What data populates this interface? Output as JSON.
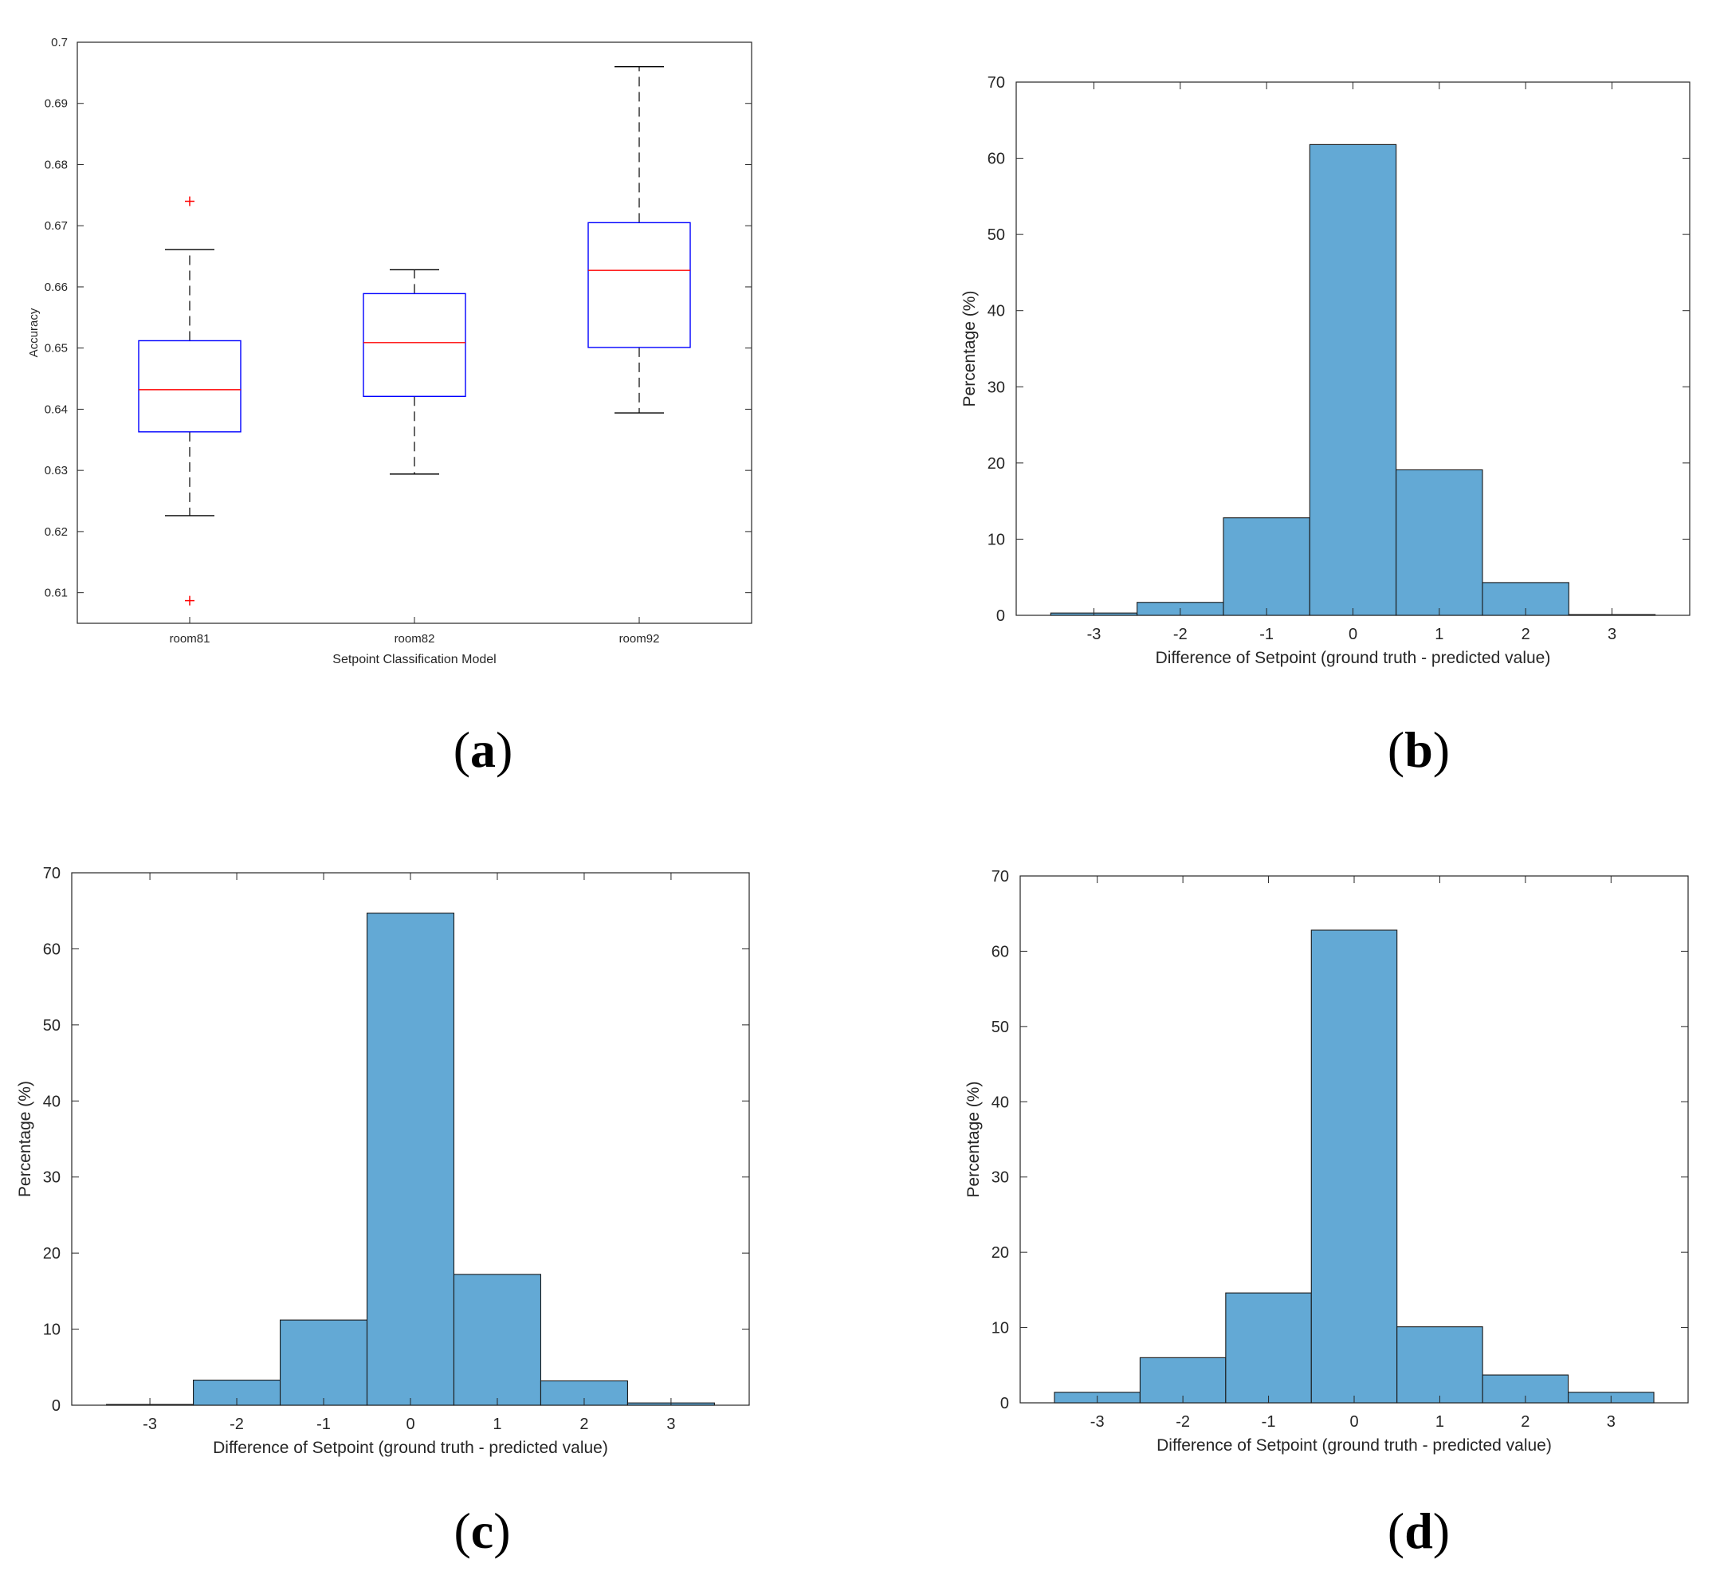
{
  "chart_data": [
    {
      "panel": "(a)",
      "panel_letter": "a",
      "type": "box",
      "xlabel": "Setpoint Classification Model",
      "ylabel": "Accuracy",
      "ylim": [
        0.605,
        0.7
      ],
      "yticks": [
        0.61,
        0.62,
        0.63,
        0.64,
        0.65,
        0.66,
        0.67,
        0.68,
        0.69,
        0.7
      ],
      "categories": [
        "room81",
        "room82",
        "room92"
      ],
      "boxes": [
        {
          "name": "room81",
          "whisker_low": 0.6226,
          "q1": 0.6363,
          "median": 0.6432,
          "q3": 0.6512,
          "whisker_high": 0.6661,
          "outliers": [
            0.674,
            0.6087
          ]
        },
        {
          "name": "room82",
          "whisker_low": 0.6294,
          "q1": 0.6421,
          "median": 0.6509,
          "q3": 0.6589,
          "whisker_high": 0.6628,
          "outliers": []
        },
        {
          "name": "room92",
          "whisker_low": 0.6394,
          "q1": 0.6501,
          "median": 0.6627,
          "q3": 0.6705,
          "whisker_high": 0.696,
          "outliers": []
        }
      ],
      "colors": {
        "box": "#0000ff",
        "median": "#ff0000",
        "whisker": "#000000",
        "outlier": "#ff0000"
      }
    },
    {
      "panel": "(b)",
      "panel_letter": "b",
      "type": "bar",
      "xlabel": "Difference of Setpoint (ground truth - predicted value)",
      "ylabel": "Percentage (%)",
      "ylim": [
        0,
        70
      ],
      "yticks": [
        0,
        10,
        20,
        30,
        40,
        50,
        60,
        70
      ],
      "categories": [
        "-3",
        "-2",
        "-1",
        "0",
        "1",
        "2",
        "3"
      ],
      "values": [
        0.3,
        1.7,
        12.8,
        61.8,
        19.1,
        4.3,
        0.1
      ],
      "colors": {
        "bar": "#63a9d5"
      }
    },
    {
      "panel": "(c)",
      "panel_letter": "c",
      "type": "bar",
      "xlabel": "Difference of Setpoint (ground truth - predicted value)",
      "ylabel": "Percentage (%)",
      "ylim": [
        0,
        70
      ],
      "yticks": [
        0,
        10,
        20,
        30,
        40,
        50,
        60,
        70
      ],
      "categories": [
        "-3",
        "-2",
        "-1",
        "0",
        "1",
        "2",
        "3"
      ],
      "values": [
        0.1,
        3.3,
        11.2,
        64.7,
        17.2,
        3.2,
        0.3
      ],
      "colors": {
        "bar": "#63a9d5"
      }
    },
    {
      "panel": "(d)",
      "panel_letter": "d",
      "type": "bar",
      "xlabel": "Difference of Setpoint (ground truth - predicted value)",
      "ylabel": "Percentage (%)",
      "ylim": [
        0,
        70
      ],
      "yticks": [
        0,
        10,
        20,
        30,
        40,
        50,
        60,
        70
      ],
      "categories": [
        "-3",
        "-2",
        "-1",
        "0",
        "1",
        "2",
        "3"
      ],
      "values": [
        1.4,
        6.0,
        14.6,
        62.8,
        10.1,
        3.7,
        1.4
      ],
      "colors": {
        "bar": "#63a9d5"
      }
    }
  ]
}
